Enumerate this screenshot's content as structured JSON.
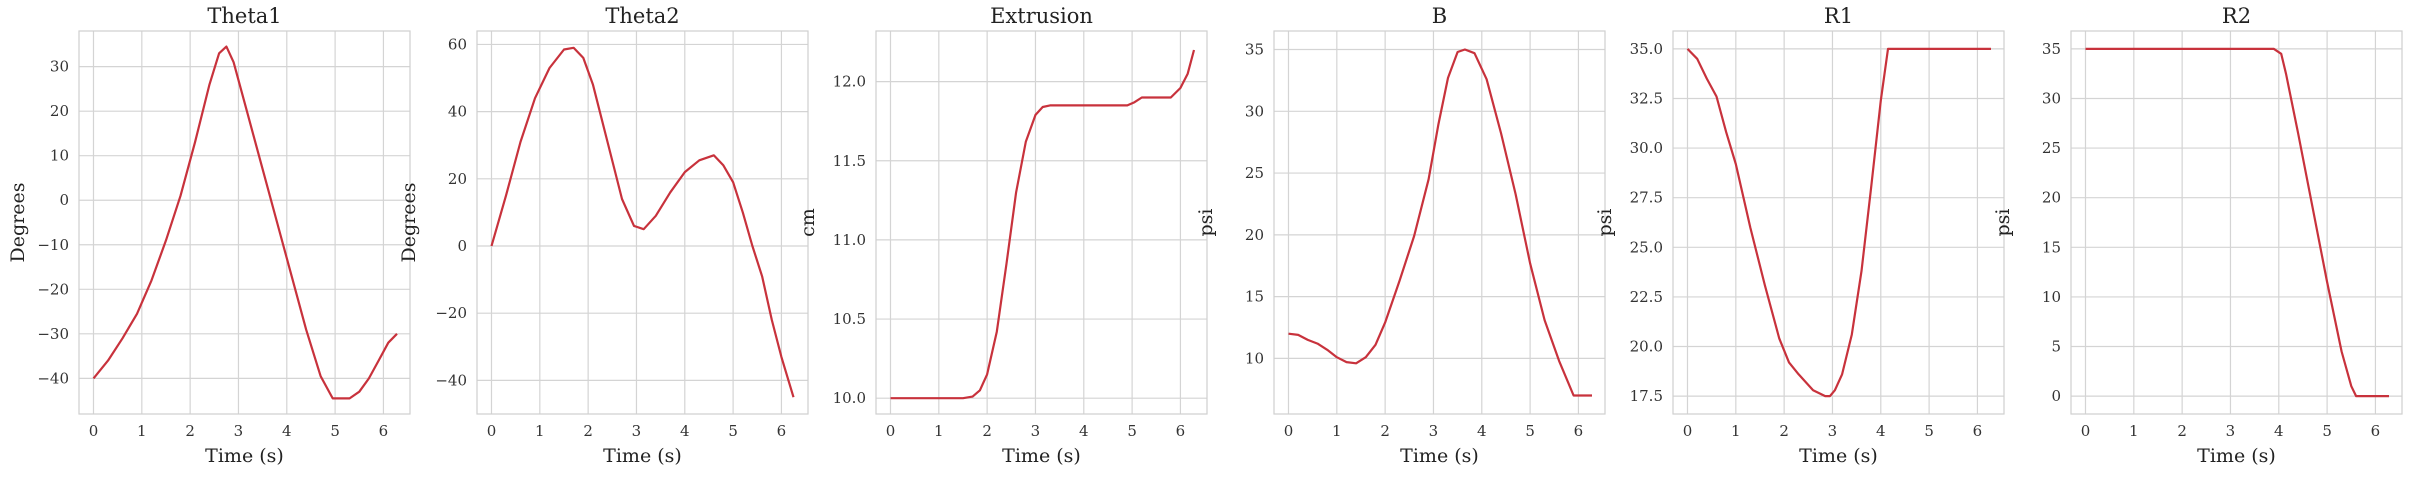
{
  "colors": {
    "line": "#c8323c",
    "grid": "#d4d4d4",
    "frame": "#cfcfcf",
    "background": "#ffffff"
  },
  "chart_data": [
    {
      "type": "line",
      "title": "Theta1",
      "xlabel": "Time (s)",
      "ylabel": "Degrees",
      "xlim": [
        -0.3,
        6.55
      ],
      "ylim": [
        -48,
        38
      ],
      "xticks": [
        0,
        1,
        2,
        3,
        4,
        5,
        6
      ],
      "yticks": [
        -40,
        -30,
        -20,
        -10,
        0,
        10,
        20,
        30
      ],
      "ytick_labels": [
        "−40",
        "−30",
        "−20",
        "−10",
        "0",
        "10",
        "20",
        "30"
      ],
      "grid": true,
      "x": [
        0,
        0.3,
        0.6,
        0.9,
        1.2,
        1.5,
        1.8,
        2.1,
        2.4,
        2.6,
        2.75,
        2.9,
        3.2,
        3.5,
        3.8,
        4.1,
        4.4,
        4.7,
        4.95,
        5.1,
        5.3,
        5.5,
        5.7,
        5.9,
        6.1,
        6.28
      ],
      "y": [
        -40,
        -36,
        -31,
        -25.5,
        -18,
        -9,
        1,
        13,
        26,
        33,
        34.5,
        31,
        19,
        7,
        -5,
        -17,
        -29,
        -39.5,
        -44.5,
        -44.5,
        -44.5,
        -43,
        -40,
        -36,
        -32,
        -30
      ]
    },
    {
      "type": "line",
      "title": "Theta2",
      "xlabel": "Time (s)",
      "ylabel": "Degrees",
      "xlim": [
        -0.3,
        6.55
      ],
      "ylim": [
        -50,
        64
      ],
      "xticks": [
        0,
        1,
        2,
        3,
        4,
        5,
        6
      ],
      "yticks": [
        -40,
        -20,
        0,
        20,
        40,
        60
      ],
      "ytick_labels": [
        "−40",
        "−20",
        "0",
        "20",
        "40",
        "60"
      ],
      "grid": true,
      "x": [
        0,
        0.3,
        0.6,
        0.9,
        1.2,
        1.5,
        1.7,
        1.9,
        2.1,
        2.4,
        2.7,
        2.95,
        3.15,
        3.4,
        3.7,
        4.0,
        4.3,
        4.6,
        4.8,
        5.0,
        5.2,
        5.4,
        5.6,
        5.8,
        6.0,
        6.25
      ],
      "y": [
        0,
        15,
        31,
        44,
        53,
        58.5,
        59,
        56,
        48,
        31,
        14,
        6,
        5,
        9,
        16,
        22,
        25.5,
        27,
        24,
        19,
        10,
        0,
        -9,
        -22,
        -33,
        -45
      ]
    },
    {
      "type": "line",
      "title": "Extrusion",
      "xlabel": "Time (s)",
      "ylabel": "cm",
      "xlim": [
        -0.3,
        6.55
      ],
      "ylim": [
        9.9,
        12.32
      ],
      "xticks": [
        0,
        1,
        2,
        3,
        4,
        5,
        6
      ],
      "yticks": [
        10.0,
        10.5,
        11.0,
        11.5,
        12.0
      ],
      "ytick_labels": [
        "10.0",
        "10.5",
        "11.0",
        "11.5",
        "12.0"
      ],
      "grid": true,
      "x": [
        0,
        0.5,
        1.0,
        1.5,
        1.7,
        1.85,
        2.0,
        2.2,
        2.4,
        2.6,
        2.8,
        3.0,
        3.15,
        3.3,
        3.6,
        4.0,
        4.5,
        4.9,
        5.05,
        5.2,
        5.5,
        5.8,
        6.0,
        6.15,
        6.28
      ],
      "y": [
        10.0,
        10.0,
        10.0,
        10.0,
        10.01,
        10.05,
        10.15,
        10.42,
        10.85,
        11.3,
        11.62,
        11.79,
        11.84,
        11.85,
        11.85,
        11.85,
        11.85,
        11.85,
        11.87,
        11.9,
        11.9,
        11.9,
        11.96,
        12.05,
        12.2
      ]
    },
    {
      "type": "line",
      "title": "B",
      "xlabel": "Time (s)",
      "ylabel": "psi",
      "xlim": [
        -0.3,
        6.55
      ],
      "ylim": [
        5.5,
        36.5
      ],
      "xticks": [
        0,
        1,
        2,
        3,
        4,
        5,
        6
      ],
      "yticks": [
        10,
        15,
        20,
        25,
        30,
        35
      ],
      "ytick_labels": [
        "10",
        "15",
        "20",
        "25",
        "30",
        "35"
      ],
      "grid": true,
      "x": [
        0,
        0.2,
        0.4,
        0.6,
        0.8,
        1.0,
        1.2,
        1.4,
        1.6,
        1.8,
        2.0,
        2.3,
        2.6,
        2.9,
        3.1,
        3.3,
        3.5,
        3.65,
        3.85,
        4.1,
        4.4,
        4.7,
        5.0,
        5.3,
        5.6,
        5.9,
        6.0,
        6.1,
        6.28
      ],
      "y": [
        12,
        11.9,
        11.5,
        11.2,
        10.7,
        10.1,
        9.7,
        9.6,
        10.1,
        11.1,
        12.9,
        16.3,
        19.9,
        24.5,
        28.9,
        32.7,
        34.8,
        35,
        34.7,
        32.6,
        28.2,
        23.3,
        17.7,
        13.1,
        9.8,
        7,
        7,
        7,
        7
      ]
    },
    {
      "type": "line",
      "title": "R1",
      "xlabel": "Time (s)",
      "ylabel": "psi",
      "xlim": [
        -0.3,
        6.55
      ],
      "ylim": [
        16.6,
        35.9
      ],
      "xticks": [
        0,
        1,
        2,
        3,
        4,
        5,
        6
      ],
      "yticks": [
        17.5,
        20.0,
        22.5,
        25.0,
        27.5,
        30.0,
        32.5,
        35.0
      ],
      "ytick_labels": [
        "17.5",
        "20.0",
        "22.5",
        "25.0",
        "27.5",
        "30.0",
        "32.5",
        "35.0"
      ],
      "grid": true,
      "x": [
        0,
        0.2,
        0.4,
        0.6,
        0.8,
        1.0,
        1.3,
        1.6,
        1.9,
        2.1,
        2.3,
        2.6,
        2.85,
        2.95,
        3.05,
        3.2,
        3.4,
        3.6,
        3.8,
        4.0,
        4.15,
        4.3,
        4.5,
        5.0,
        5.5,
        6.0,
        6.28
      ],
      "y": [
        35,
        34.5,
        33.5,
        32.6,
        30.8,
        29.2,
        26,
        23.1,
        20.4,
        19.2,
        18.6,
        17.8,
        17.5,
        17.5,
        17.8,
        18.6,
        20.6,
        23.8,
        28,
        32.4,
        35,
        35,
        35,
        35,
        35,
        35,
        35
      ]
    },
    {
      "type": "line",
      "title": "R2",
      "xlabel": "Time (s)",
      "ylabel": "psi",
      "xlim": [
        -0.3,
        6.55
      ],
      "ylim": [
        -1.8,
        36.8
      ],
      "xticks": [
        0,
        1,
        2,
        3,
        4,
        5,
        6
      ],
      "yticks": [
        0,
        5,
        10,
        15,
        20,
        25,
        30,
        35
      ],
      "ytick_labels": [
        "0",
        "5",
        "10",
        "15",
        "20",
        "25",
        "30",
        "35"
      ],
      "grid": true,
      "x": [
        0,
        1,
        2,
        3,
        3.9,
        4.05,
        4.15,
        4.4,
        4.7,
        5.0,
        5.3,
        5.5,
        5.6,
        5.7,
        5.9,
        6.1,
        6.28
      ],
      "y": [
        35,
        35,
        35,
        35,
        35,
        34.5,
        32.5,
        26.5,
        19,
        11.5,
        4.5,
        1,
        0,
        0,
        0,
        0,
        0
      ]
    }
  ]
}
